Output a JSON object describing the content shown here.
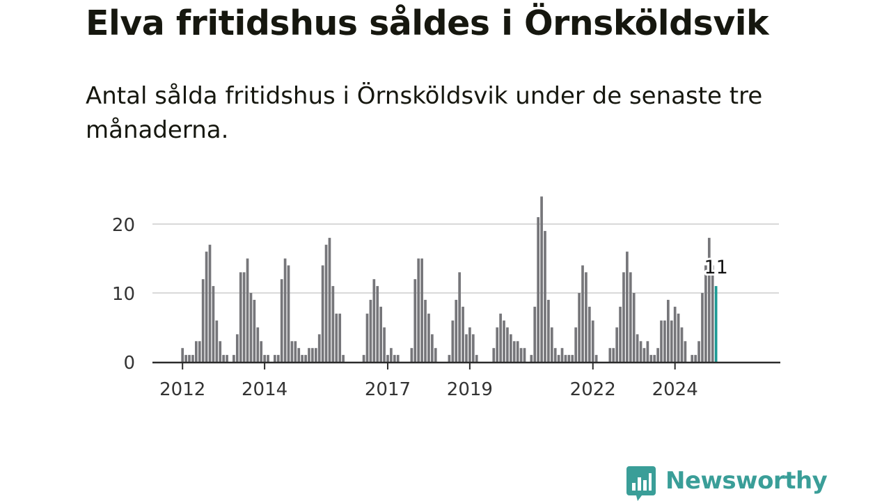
{
  "headline": "Elva fritidshus såldes i Örnsköldsvik",
  "subtitle": "Antal sålda fritidshus i Örnsköldsvik under de senaste tre månaderna.",
  "brand": {
    "name": "Newsworthy",
    "logo_icon": "newsworthy-bar-chart-icon",
    "color": "#3a9e98"
  },
  "colors": {
    "bar": "#76767a",
    "highlight": "#1c9a94",
    "grid": "#d9d9d9",
    "axis": "#2b2b2b",
    "text": "#333333"
  },
  "chart_data": {
    "type": "bar",
    "title": "Elva fritidshus såldes i Örnsköldsvik",
    "subtitle": "Antal sålda fritidshus i Örnsköldsvik under de senaste tre månaderna.",
    "xlabel": "",
    "ylabel": "",
    "ylim": [
      0,
      24
    ],
    "yticks": [
      0,
      10,
      20
    ],
    "grid": true,
    "legend": "none",
    "start_month": "2012-01",
    "x_ticks": [
      {
        "label": "2012",
        "month": "2012-01"
      },
      {
        "label": "2014",
        "month": "2014-01"
      },
      {
        "label": "2017",
        "month": "2017-01"
      },
      {
        "label": "2019",
        "month": "2019-01"
      },
      {
        "label": "2022",
        "month": "2022-01"
      },
      {
        "label": "2024",
        "month": "2024-01"
      }
    ],
    "values": [
      2,
      1,
      1,
      1,
      3,
      3,
      12,
      16,
      17,
      11,
      6,
      3,
      1,
      1,
      0,
      1,
      4,
      13,
      13,
      15,
      10,
      9,
      5,
      3,
      1,
      1,
      0,
      1,
      1,
      12,
      15,
      14,
      3,
      3,
      2,
      1,
      1,
      2,
      2,
      2,
      4,
      14,
      17,
      18,
      11,
      7,
      7,
      1,
      0,
      0,
      0,
      0,
      0,
      1,
      7,
      9,
      12,
      11,
      8,
      5,
      1,
      2,
      1,
      1,
      0,
      0,
      0,
      2,
      12,
      15,
      15,
      9,
      7,
      4,
      2,
      0,
      0,
      0,
      1,
      6,
      9,
      13,
      8,
      4,
      5,
      4,
      1,
      0,
      0,
      0,
      0,
      2,
      5,
      7,
      6,
      5,
      4,
      3,
      3,
      2,
      2,
      0,
      1,
      8,
      21,
      24,
      19,
      9,
      5,
      2,
      1,
      2,
      1,
      1,
      1,
      5,
      10,
      14,
      13,
      8,
      6,
      1,
      0,
      0,
      0,
      2,
      2,
      5,
      8,
      13,
      16,
      13,
      10,
      4,
      3,
      2,
      3,
      1,
      1,
      2,
      6,
      6,
      9,
      6,
      8,
      7,
      5,
      3,
      0,
      1,
      1,
      3,
      10,
      14,
      18,
      14,
      11
    ],
    "highlight_last": true,
    "annotations": [
      {
        "label": "11",
        "series": "last"
      }
    ]
  }
}
